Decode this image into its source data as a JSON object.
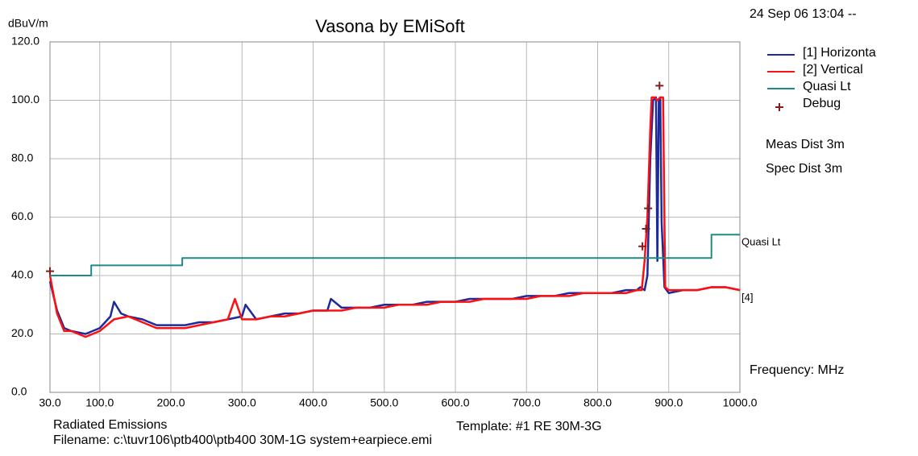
{
  "chart_data": {
    "type": "line",
    "title": "Vasona by EMiSoft",
    "timestamp": "24 Sep 06 13:04 --",
    "ylabel": "dBuV/m",
    "xlabel": "Frequency: MHz",
    "notes": [
      "Meas Dist 3m",
      "Spec Dist 3m"
    ],
    "footer": {
      "left": "Radiated Emissions",
      "template": "Template: #1 RE 30M-3G",
      "filename": "Filename: c:\\tuvr106\\ptb400\\ptb400 30M-1G system+earpiece.emi"
    },
    "annotations": [
      {
        "text": "Quasi Lt",
        "x": 1000,
        "y": 54
      },
      {
        "text": "[4]",
        "x": 1000,
        "y": 35
      }
    ],
    "xlim": [
      30,
      1000
    ],
    "ylim": [
      0,
      120
    ],
    "xticks": [
      {
        "value": 30,
        "label": "30.0"
      },
      {
        "value": 100,
        "label": "100.0"
      },
      {
        "value": 200,
        "label": "200.0"
      },
      {
        "value": 300,
        "label": "300.0"
      },
      {
        "value": 400,
        "label": "400.0"
      },
      {
        "value": 500,
        "label": "500.0"
      },
      {
        "value": 600,
        "label": "600.0"
      },
      {
        "value": 700,
        "label": "700.0"
      },
      {
        "value": 800,
        "label": "800.0"
      },
      {
        "value": 900,
        "label": "900.0"
      },
      {
        "value": 1000,
        "label": "1000.0"
      }
    ],
    "yticks": [
      {
        "value": 0,
        "label": "0.0"
      },
      {
        "value": 20,
        "label": "20.0"
      },
      {
        "value": 40,
        "label": "40.0"
      },
      {
        "value": 60,
        "label": "60.0"
      },
      {
        "value": 80,
        "label": "80.0"
      },
      {
        "value": 100,
        "label": "100.0"
      },
      {
        "value": 120,
        "label": "120.0"
      }
    ],
    "grid": true,
    "series": [
      {
        "name": "[1] Horizonta",
        "color": "#1c2a9c",
        "x": [
          30,
          40,
          50,
          60,
          80,
          100,
          115,
          120,
          130,
          140,
          160,
          180,
          200,
          220,
          240,
          260,
          280,
          300,
          305,
          320,
          340,
          360,
          380,
          400,
          420,
          425,
          440,
          460,
          480,
          500,
          520,
          540,
          560,
          580,
          600,
          620,
          640,
          660,
          680,
          700,
          720,
          740,
          760,
          780,
          800,
          820,
          840,
          855,
          860,
          866,
          870,
          874,
          878,
          882,
          884,
          886,
          888,
          890,
          894,
          900,
          920,
          940,
          960,
          980,
          1000
        ],
        "values": [
          38,
          28,
          22,
          21,
          20,
          22,
          26,
          31,
          27,
          26,
          25,
          23,
          23,
          23,
          24,
          24,
          25,
          26,
          30,
          25,
          26,
          27,
          27,
          28,
          28,
          32,
          29,
          29,
          29,
          30,
          30,
          30,
          31,
          31,
          31,
          32,
          32,
          32,
          32,
          33,
          33,
          33,
          34,
          34,
          34,
          34,
          35,
          35,
          36,
          35,
          40,
          80,
          100,
          101,
          45,
          100,
          101,
          58,
          36,
          34,
          35,
          35,
          36,
          36,
          35
        ]
      },
      {
        "name": "[2] Vertical",
        "color": "#ff1010",
        "x": [
          30,
          40,
          50,
          60,
          80,
          100,
          120,
          140,
          160,
          180,
          200,
          220,
          240,
          260,
          280,
          290,
          300,
          320,
          340,
          360,
          380,
          400,
          420,
          440,
          460,
          480,
          500,
          520,
          540,
          560,
          580,
          600,
          620,
          640,
          660,
          680,
          700,
          720,
          740,
          760,
          780,
          800,
          820,
          840,
          855,
          862,
          866,
          870,
          874,
          876,
          880,
          884,
          888,
          892,
          895,
          900,
          920,
          940,
          960,
          980,
          1000
        ],
        "values": [
          40,
          27,
          21,
          21,
          19,
          21,
          25,
          26,
          24,
          22,
          22,
          22,
          23,
          24,
          25,
          32,
          25,
          25,
          26,
          26,
          27,
          28,
          28,
          28,
          29,
          29,
          29,
          30,
          30,
          30,
          31,
          31,
          31,
          32,
          32,
          32,
          32,
          33,
          33,
          33,
          34,
          34,
          34,
          34,
          35,
          35,
          45,
          60,
          90,
          101,
          101,
          100,
          101,
          101,
          36,
          35,
          35,
          35,
          36,
          36,
          35
        ]
      },
      {
        "name": "Quasi Lt",
        "color": "#1f8a86",
        "drawstyle": "steps-post",
        "x": [
          30,
          88,
          216,
          960,
          1000
        ],
        "values": [
          40,
          43.5,
          46,
          54,
          54
        ]
      },
      {
        "name": "Debug",
        "color": "#8b1a1a",
        "marker": "+",
        "type": "scatter",
        "x": [
          30,
          863,
          868,
          871,
          887
        ],
        "values": [
          41.5,
          50,
          56,
          63,
          105
        ]
      }
    ]
  }
}
